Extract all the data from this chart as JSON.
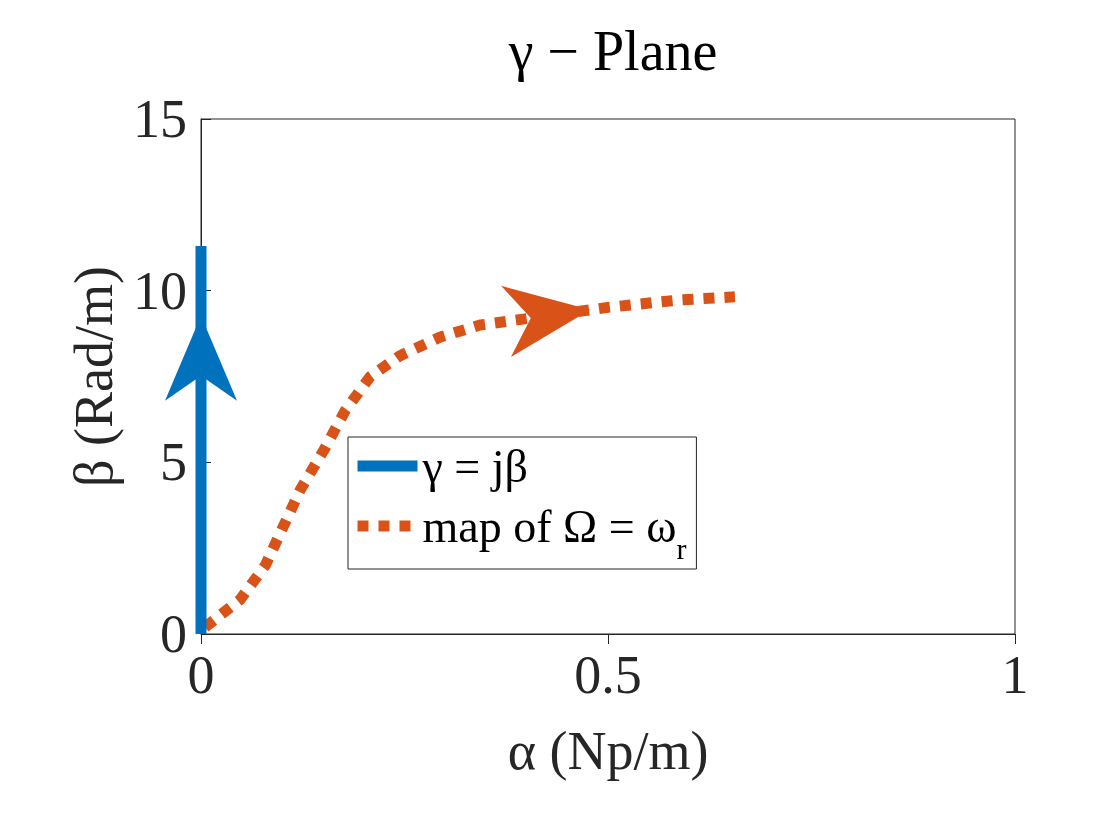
{
  "chart_data": {
    "type": "line",
    "title": "γ − Plane",
    "xlabel": "α (Np/m)",
    "ylabel": "β (Rad/m)",
    "xlim": [
      0,
      1
    ],
    "xticks": [
      0,
      0.5,
      1
    ],
    "ylim": [
      0,
      15
    ],
    "yticks": [
      0,
      5,
      10,
      15
    ],
    "grid": false,
    "legend": "bottom",
    "marker": "none",
    "series": [
      {
        "name": "γ = jβ",
        "color": "#0072bd",
        "line_style": "solid",
        "x": [
          0,
          0,
          0,
          0,
          0,
          0
        ],
        "values": [
          0,
          2.5,
          5,
          7.5,
          10,
          11.3
        ]
      },
      {
        "name": "map of Ω = ω$_{r}$",
        "color": "#d95319",
        "line_style": "dotted",
        "x": [
          0.005,
          0.048,
          0.079,
          0.122,
          0.152,
          0.177,
          0.208,
          0.244,
          0.294,
          0.343,
          0.502,
          0.588,
          0.656
        ],
        "values": [
          0.2,
          1.0,
          2.0,
          4.2,
          5.4,
          6.5,
          7.5,
          8.1,
          8.65,
          9.0,
          9.52,
          9.73,
          9.82
        ]
      }
    ]
  }
}
